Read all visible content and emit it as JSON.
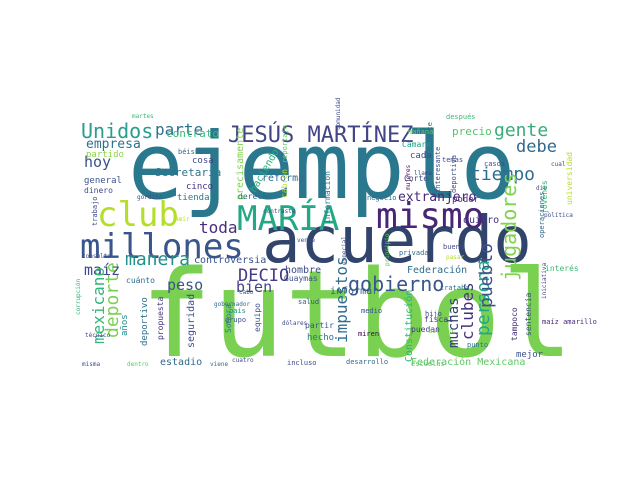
{
  "words": [
    {
      "text": "futbol",
      "color": "#7ad151"
    },
    {
      "text": "ejemplo",
      "color": "#2a788e"
    },
    {
      "text": "acuerdo",
      "color": "#31446b"
    },
    {
      "text": "millones",
      "color": "#39568c"
    },
    {
      "text": "mismo",
      "color": "#482576"
    },
    {
      "text": "MARÍA",
      "color": "#22a884"
    },
    {
      "text": "club",
      "color": "#b5de2b"
    },
    {
      "text": "JESÚS MARTÍNEZ",
      "color": "#414487"
    },
    {
      "text": "Unidos",
      "color": "#2a9d8f"
    },
    {
      "text": "gente",
      "color": "#3aaa7a"
    },
    {
      "text": "tiempo",
      "color": "#2d708e"
    },
    {
      "text": "debe",
      "color": "#31688e"
    },
    {
      "text": "jugadores",
      "color": "#7fd34e"
    },
    {
      "text": "gobierno",
      "color": "#39568c"
    },
    {
      "text": "persona",
      "color": "#22a884"
    },
    {
      "text": "pueblo",
      "color": "#3b528b"
    },
    {
      "text": "impuestos",
      "color": "#2f6c8e"
    },
    {
      "text": "muchas",
      "color": "#31446b"
    },
    {
      "text": "clubes",
      "color": "#46327e"
    },
    {
      "text": "parte",
      "color": "#2c728e"
    },
    {
      "text": "toda",
      "color": "#472d7b"
    },
    {
      "text": "manera",
      "color": "#21908d"
    },
    {
      "text": "DECIO",
      "color": "#443983"
    },
    {
      "text": "deporte",
      "color": "#7ad151"
    },
    {
      "text": "maíz",
      "color": "#3e4a89"
    },
    {
      "text": "peso",
      "color": "#3b528b"
    },
    {
      "text": "bien",
      "color": "#414487"
    },
    {
      "text": "mexicano",
      "color": "#32b67a"
    },
    {
      "text": "hoy",
      "color": "#3b528b"
    },
    {
      "text": "empresa",
      "color": "#2c728e"
    },
    {
      "text": "extranjero",
      "color": "#472a7a"
    },
    {
      "text": "Secretaría",
      "color": "#2a788e"
    },
    {
      "text": "contrato",
      "color": "#3aba76"
    },
    {
      "text": "precio",
      "color": "#52c569"
    },
    {
      "text": "Federación Mexicana",
      "color": "#5ec962"
    },
    {
      "text": "Federación",
      "color": "#2e6f8e"
    },
    {
      "text": "controversia",
      "color": "#3b528b"
    },
    {
      "text": "precisamente",
      "color": "#7fd34e"
    },
    {
      "text": "haciendo",
      "color": "#29af7f"
    },
    {
      "text": "reforma",
      "color": "#31688e"
    },
    {
      "text": "quiero",
      "color": "#46307e"
    },
    {
      "text": "seguridad",
      "color": "#3e4c8a"
    },
    {
      "text": "Constitución",
      "color": "#2db27d"
    },
    {
      "text": "informar",
      "color": "#375a8c"
    },
    {
      "text": "hombre",
      "color": "#3e4a89"
    },
    {
      "text": "estadio",
      "color": "#31688e"
    },
    {
      "text": "deportivo",
      "color": "#2d708e"
    },
    {
      "text": "años",
      "color": "#21908d"
    },
    {
      "text": "partido",
      "color": "#8bd646"
    },
    {
      "text": "general",
      "color": "#3b528b"
    },
    {
      "text": "cosa",
      "color": "#3e4a89"
    },
    {
      "text": "cinco",
      "color": "#46307e"
    },
    {
      "text": "tienda",
      "color": "#2a788e"
    },
    {
      "text": "derecho",
      "color": "#31688e"
    },
    {
      "text": "cabrón",
      "color": "#b8de29"
    },
    {
      "text": "Cámara",
      "color": "#20a386"
    },
    {
      "text": "cada",
      "color": "#3e4a89"
    },
    {
      "text": "poder",
      "color": "#472a7a"
    },
    {
      "text": "negocio",
      "color": "#2e6f8e"
    },
    {
      "text": "información",
      "color": "#2a788e"
    },
    {
      "text": "Corte",
      "color": "#3e4a89"
    },
    {
      "text": "dinero",
      "color": "#3e4c8a"
    },
    {
      "text": "cuánto",
      "color": "#2d708e"
    },
    {
      "text": "propuesta",
      "color": "#46327e"
    },
    {
      "text": "hecho",
      "color": "#2a788e"
    },
    {
      "text": "partir",
      "color": "#3b528b"
    },
    {
      "text": "equipo",
      "color": "#3b528b"
    },
    {
      "text": "puedan",
      "color": "#443983"
    },
    {
      "text": "fiscal",
      "color": "#443983"
    },
    {
      "text": "asunto",
      "color": "#7fd34e"
    },
    {
      "text": "mejor",
      "color": "#3b528b"
    },
    {
      "text": "incluso",
      "color": "#3e4a89"
    },
    {
      "text": "desarrollo",
      "color": "#31688e"
    },
    {
      "text": "escuelas",
      "color": "#5ec962"
    },
    {
      "text": "sentencia",
      "color": "#3e4a89"
    },
    {
      "text": "tampoco",
      "color": "#472a7a"
    },
    {
      "text": "maíz amarillo",
      "color": "#472a7a"
    },
    {
      "text": "punto",
      "color": "#2c728e"
    },
    {
      "text": "interés",
      "color": "#3aba76"
    },
    {
      "text": "buena",
      "color": "#3e4c8a"
    },
    {
      "text": "privada",
      "color": "#31688e"
    },
    {
      "text": "hijo",
      "color": "#3e4a89"
    },
    {
      "text": "medio",
      "color": "#3b528b"
    },
    {
      "text": "miren",
      "color": "#440154"
    },
    {
      "text": "universidad",
      "color": "#b5de2b"
    },
    {
      "text": "jóvenes",
      "color": "#32b67a"
    },
    {
      "text": "operaciones",
      "color": "#31688e"
    },
    {
      "text": "siguiente",
      "color": "#2c728e"
    },
    {
      "text": "temas",
      "color": "#3e4a89"
    },
    {
      "text": "casos",
      "color": "#3e4a89"
    },
    {
      "text": "deportiva",
      "color": "#3e4a89"
    },
    {
      "text": "interesante",
      "color": "#3b528b"
    },
    {
      "text": "después",
      "color": "#3aba76"
    },
    {
      "text": "mañana",
      "color": "#5ec962"
    },
    {
      "text": "martes",
      "color": "#3aba76"
    },
    {
      "text": "reportaje",
      "color": "#5ec962"
    },
    {
      "text": "béisbol",
      "color": "#31688e"
    },
    {
      "text": "gordito",
      "color": "#3e4a89"
    },
    {
      "text": "trabajo",
      "color": "#3e4a89"
    },
    {
      "text": "Amir",
      "color": "#b5de2b"
    },
    {
      "text": "consulta",
      "color": "#3e4a89"
    },
    {
      "text": "corrupción",
      "color": "#32b67a"
    },
    {
      "text": "técnico",
      "color": "#3e4a89"
    },
    {
      "text": "misma",
      "color": "#3e4a89"
    },
    {
      "text": "dentro",
      "color": "#5ec962"
    },
    {
      "text": "viene",
      "color": "#31688e"
    },
    {
      "text": "cuatro",
      "color": "#3e4a89"
    },
    {
      "text": "Guaymas",
      "color": "#3b528b"
    },
    {
      "text": "salud",
      "color": "#3b528b"
    },
    {
      "text": "dólares",
      "color": "#3e4a89"
    },
    {
      "text": "grupo",
      "color": "#3b528b"
    },
    {
      "text": "cabo",
      "color": "#3b528b"
    },
    {
      "text": "país",
      "color": "#21908d"
    },
    {
      "text": "Sonora",
      "color": "#2a788e"
    },
    {
      "text": "gobernador",
      "color": "#31688e"
    },
    {
      "text": "vende",
      "color": "#3e4a89"
    },
    {
      "text": "especial",
      "color": "#3e4a89"
    },
    {
      "text": "trataba",
      "color": "#2c728e"
    },
    {
      "text": "pasar",
      "color": "#b5de2b"
    },
    {
      "text": "política",
      "color": "#3e4a89"
    },
    {
      "text": "iniciativa",
      "color": "#3e4a89"
    },
    {
      "text": "mujeres",
      "color": "#440154"
    },
    {
      "text": "llame",
      "color": "#3e4a89"
    },
    {
      "text": "comunidad",
      "color": "#3e4a89"
    },
    {
      "text": "principio",
      "color": "#5ec962"
    },
    {
      "text": "cual",
      "color": "#3e4a89"
    },
    {
      "text": "dio",
      "color": "#3e4a89"
    },
    {
      "text": "contraste",
      "color": "#3e4a89"
    }
  ]
}
